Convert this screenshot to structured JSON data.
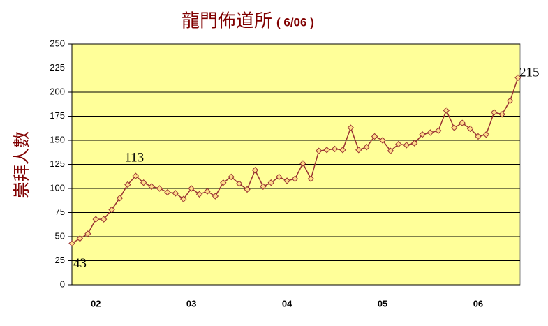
{
  "chart_data": {
    "type": "line",
    "title": "龍門佈道所",
    "title_note": "( 6/06 )",
    "y_label": "崇拜人數",
    "categories": [
      null,
      null,
      null,
      "02",
      null,
      null,
      null,
      null,
      null,
      null,
      null,
      null,
      null,
      null,
      null,
      "03",
      null,
      null,
      null,
      null,
      null,
      null,
      null,
      null,
      null,
      null,
      null,
      "04",
      null,
      null,
      null,
      null,
      null,
      null,
      null,
      null,
      null,
      null,
      null,
      "05",
      null,
      null,
      null,
      null,
      null,
      null,
      null,
      null,
      null,
      null,
      null,
      "06",
      null,
      null,
      null,
      null,
      null
    ],
    "series": [
      {
        "name": "崇拜人數",
        "color": "#993333",
        "marker_fill": "#ffdd88",
        "values": [
          43,
          48,
          53,
          68,
          68,
          78,
          90,
          104,
          113,
          106,
          102,
          100,
          96,
          95,
          89,
          100,
          94,
          97,
          92,
          106,
          112,
          105,
          99,
          119,
          102,
          106,
          112,
          108,
          110,
          126,
          110,
          139,
          140,
          141,
          140,
          163,
          140,
          143,
          154,
          150,
          139,
          146,
          145,
          147,
          156,
          158,
          160,
          181,
          163,
          168,
          162,
          154,
          156,
          179,
          177,
          191,
          215
        ]
      }
    ],
    "labeled_indices": [
      0,
      8,
      56
    ],
    "ylim": [
      0,
      250
    ],
    "yticks": [
      0,
      25,
      50,
      75,
      100,
      125,
      150,
      175,
      200,
      225,
      250
    ],
    "grid": true,
    "plot_background": "#ffff99"
  }
}
